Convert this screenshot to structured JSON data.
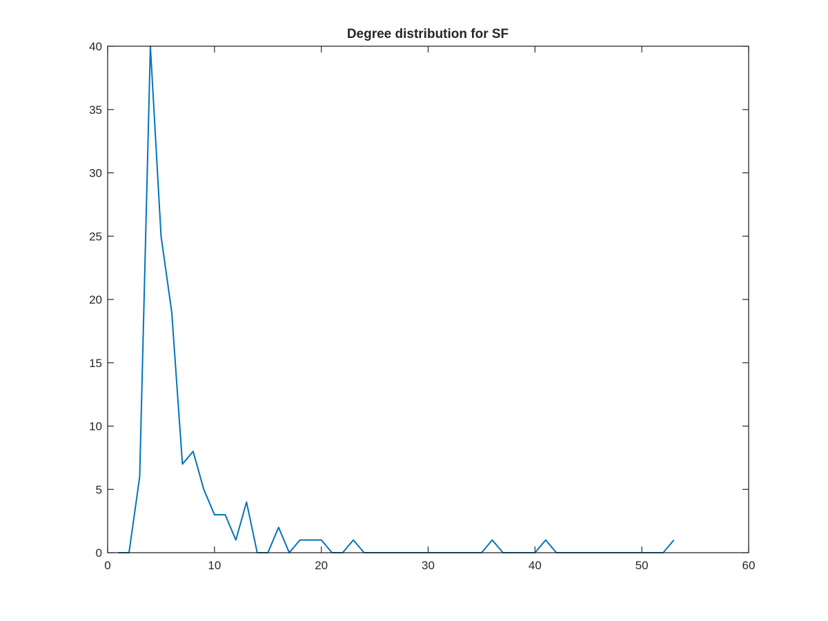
{
  "colors": {
    "series": "#0072bd",
    "axis": "#262626",
    "background": "#ffffff"
  },
  "chart_data": {
    "type": "line",
    "title": "Degree distribution for SF",
    "xlabel": "",
    "ylabel": "",
    "xlim": [
      0,
      60
    ],
    "ylim": [
      0,
      40
    ],
    "grid": false,
    "legend": "none",
    "x_ticks": [
      0,
      10,
      20,
      30,
      40,
      50,
      60
    ],
    "y_ticks": [
      0,
      5,
      10,
      15,
      20,
      25,
      30,
      35,
      40
    ],
    "series": [
      {
        "x": [
          1,
          2,
          3,
          4,
          5,
          6,
          7,
          8,
          9,
          10,
          11,
          12,
          13,
          14,
          15,
          16,
          17,
          18,
          19,
          20,
          21,
          22,
          23,
          24,
          25,
          26,
          27,
          28,
          29,
          30,
          31,
          32,
          33,
          34,
          35,
          36,
          37,
          38,
          39,
          40,
          41,
          42,
          43,
          44,
          45,
          46,
          47,
          48,
          49,
          50,
          51,
          52,
          53
        ],
        "y": [
          0,
          0,
          6,
          40,
          25,
          19,
          7,
          8,
          5,
          3,
          3,
          1,
          4,
          0,
          0,
          2,
          0,
          1,
          1,
          1,
          0,
          0,
          1,
          0,
          0,
          0,
          0,
          0,
          0,
          0,
          0,
          0,
          0,
          0,
          0,
          1,
          0,
          0,
          0,
          0,
          1,
          0,
          0,
          0,
          0,
          0,
          0,
          0,
          0,
          0,
          0,
          0,
          1
        ]
      }
    ]
  }
}
